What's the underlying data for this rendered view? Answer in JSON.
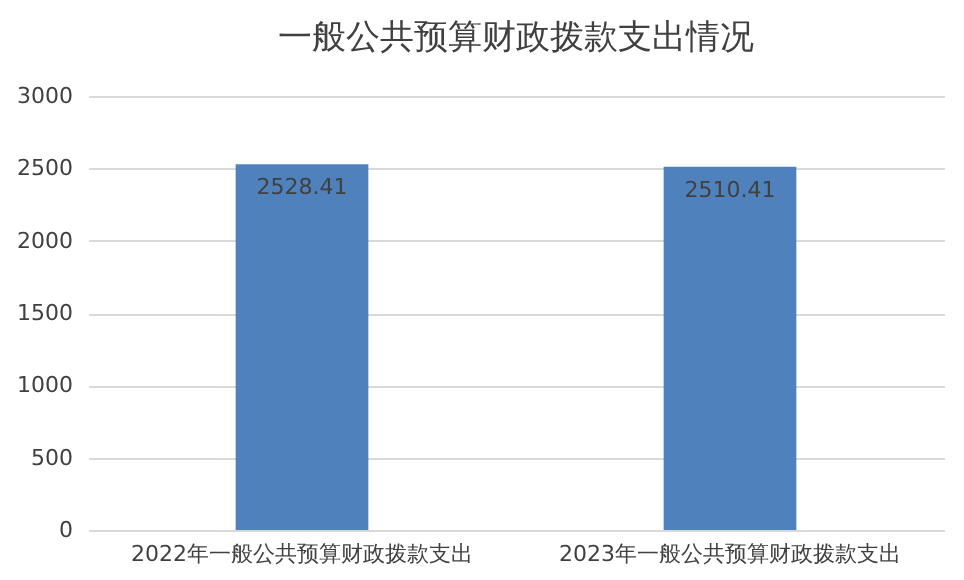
{
  "chart_data": {
    "type": "bar",
    "title": "一般公共预算财政拨款支出情况",
    "categories": [
      "2022年一般公共预算财政拨款支出",
      "2023年一般公共预算财政拨款支出"
    ],
    "values": [
      2528.41,
      2510.41
    ],
    "color": "#4f81bd",
    "ylim": [
      0,
      3000
    ],
    "yticks": [
      0,
      500,
      1000,
      1500,
      2000,
      2500,
      3000
    ],
    "grid": "y",
    "data_labels": true
  }
}
